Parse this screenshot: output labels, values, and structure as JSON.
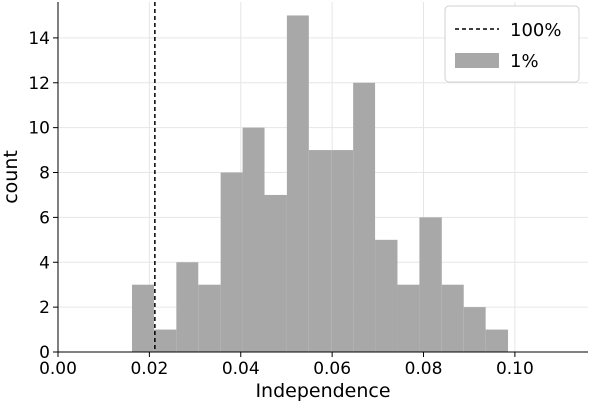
{
  "chart_data": {
    "type": "bar",
    "subtype": "histogram",
    "xlabel": "Independence",
    "ylabel": "count",
    "xlim": [
      0.0,
      0.116
    ],
    "ylim": [
      0,
      15.6
    ],
    "x_ticks": [
      0.0,
      0.02,
      0.04,
      0.06,
      0.08,
      0.1
    ],
    "x_tick_labels": [
      "0.00",
      "0.02",
      "0.04",
      "0.06",
      "0.08",
      "0.10"
    ],
    "y_ticks": [
      0,
      2,
      4,
      6,
      8,
      10,
      12,
      14
    ],
    "y_tick_labels": [
      "0",
      "2",
      "4",
      "6",
      "8",
      "10",
      "12",
      "14"
    ],
    "grid": true,
    "legend_position": "top-right",
    "series": [
      {
        "name": "1%",
        "kind": "histogram",
        "color": "#a8a8a8",
        "bins": [
          {
            "x0": 0.0162,
            "x1": 0.021,
            "count": 3
          },
          {
            "x0": 0.021,
            "x1": 0.0259,
            "count": 1
          },
          {
            "x0": 0.0259,
            "x1": 0.0307,
            "count": 4
          },
          {
            "x0": 0.0307,
            "x1": 0.0356,
            "count": 3
          },
          {
            "x0": 0.0356,
            "x1": 0.0404,
            "count": 8
          },
          {
            "x0": 0.0404,
            "x1": 0.0452,
            "count": 10
          },
          {
            "x0": 0.0452,
            "x1": 0.0501,
            "count": 7
          },
          {
            "x0": 0.0501,
            "x1": 0.0549,
            "count": 15
          },
          {
            "x0": 0.0549,
            "x1": 0.0598,
            "count": 9
          },
          {
            "x0": 0.0598,
            "x1": 0.0646,
            "count": 9
          },
          {
            "x0": 0.0646,
            "x1": 0.0694,
            "count": 12
          },
          {
            "x0": 0.0694,
            "x1": 0.0743,
            "count": 5
          },
          {
            "x0": 0.0743,
            "x1": 0.0791,
            "count": 3
          },
          {
            "x0": 0.0791,
            "x1": 0.084,
            "count": 6
          },
          {
            "x0": 0.084,
            "x1": 0.0888,
            "count": 3
          },
          {
            "x0": 0.0888,
            "x1": 0.0936,
            "count": 2
          },
          {
            "x0": 0.0936,
            "x1": 0.0985,
            "count": 1
          }
        ]
      },
      {
        "name": "100%",
        "kind": "vline",
        "x": 0.0212,
        "color": "#000000",
        "style": "dashed"
      }
    ]
  }
}
